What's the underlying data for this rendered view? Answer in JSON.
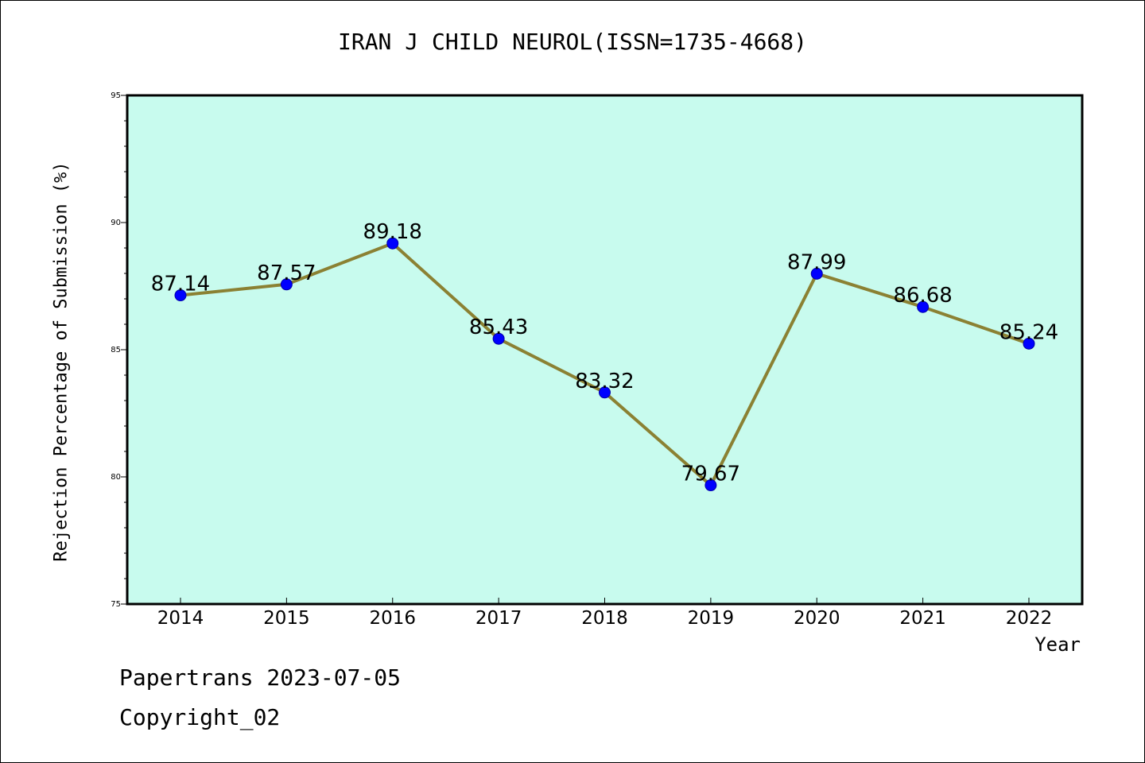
{
  "chart_data": {
    "type": "line",
    "title": "IRAN J CHILD NEUROL(ISSN=1735-4668)",
    "xlabel": "Year",
    "ylabel": "Rejection Percentage of Submission (%)",
    "categories": [
      "2014",
      "2015",
      "2016",
      "2017",
      "2018",
      "2019",
      "2020",
      "2021",
      "2022"
    ],
    "series": [
      {
        "values": [
          87.14,
          87.57,
          89.18,
          85.43,
          83.32,
          79.67,
          87.99,
          86.68,
          85.24
        ]
      }
    ],
    "data_labels": [
      "87.14",
      "87.57",
      "89.18",
      "85.43",
      "83.32",
      "79.67",
      "87.99",
      "86.68",
      "85.24"
    ],
    "ylim": [
      75,
      95
    ],
    "yticks": [
      75,
      80,
      85,
      90,
      95
    ],
    "ytick_labels": [
      "75",
      "80",
      "85",
      "90",
      "95"
    ],
    "grid": false,
    "colors": {
      "plot_background": "#c8fbee",
      "line": "#8b8133",
      "marker": "#0000ff"
    }
  },
  "footer": {
    "line1": "Papertrans 2023-07-05",
    "line2": "Copyright_02"
  }
}
